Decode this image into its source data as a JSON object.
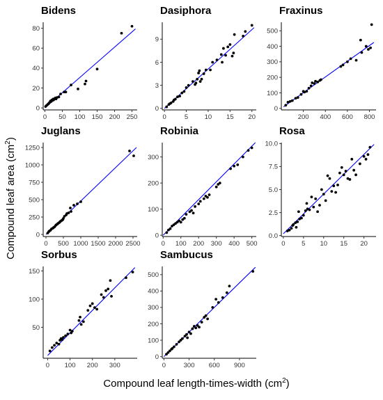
{
  "figure": {
    "xlabel": "Compound leaf length-times-width (cm²)",
    "xlabel_main": "Compound leaf length-times-width (cm",
    "xlabel_sup": "2",
    "xlabel_end": ")",
    "ylabel_main": "Compound leaf area (cm",
    "ylabel_sup": "2",
    "ylabel_end": ")",
    "point_color": "#000000",
    "line_color": "#0000ff"
  },
  "chart_data": [
    {
      "type": "scatter",
      "title": "Bidens",
      "xlim": [
        -5,
        265
      ],
      "ylim": [
        -2,
        86
      ],
      "xticks": [
        0,
        50,
        100,
        150,
        200,
        250
      ],
      "yticks": [
        0,
        20,
        40,
        60,
        80
      ],
      "fit": [
        [
          0,
          0
        ],
        [
          260,
          79.3
        ]
      ],
      "points": [
        [
          2,
          1.5
        ],
        [
          5,
          2.5
        ],
        [
          8,
          3.5
        ],
        [
          10,
          4
        ],
        [
          12,
          5
        ],
        [
          15,
          6
        ],
        [
          16,
          7
        ],
        [
          18,
          6.5
        ],
        [
          20,
          8
        ],
        [
          22,
          7.5
        ],
        [
          24,
          9
        ],
        [
          25,
          8
        ],
        [
          28,
          9
        ],
        [
          30,
          10
        ],
        [
          32,
          9
        ],
        [
          35,
          10.5
        ],
        [
          40,
          11
        ],
        [
          45,
          14
        ],
        [
          55,
          16
        ],
        [
          60,
          16
        ],
        [
          75,
          23
        ],
        [
          95,
          19
        ],
        [
          115,
          24
        ],
        [
          118,
          27
        ],
        [
          150,
          39
        ],
        [
          220,
          75
        ],
        [
          250,
          82
        ]
      ]
    },
    {
      "type": "scatter",
      "title": "Dasiphora",
      "xlim": [
        -0.5,
        21
      ],
      "ylim": [
        -0.2,
        11.2
      ],
      "xticks": [
        0,
        5,
        10,
        15,
        20
      ],
      "yticks": [
        0,
        3,
        6,
        9
      ],
      "fit": [
        [
          0,
          0
        ],
        [
          20.5,
          10.5
        ]
      ],
      "points": [
        [
          0.5,
          0.2
        ],
        [
          1,
          0.5
        ],
        [
          1.2,
          0.6
        ],
        [
          1.5,
          0.7
        ],
        [
          2,
          0.9
        ],
        [
          2.2,
          1.1
        ],
        [
          2.5,
          1.2
        ],
        [
          3,
          1.5
        ],
        [
          3.5,
          1.6
        ],
        [
          4,
          2
        ],
        [
          4.5,
          2.2
        ],
        [
          5,
          2.7
        ],
        [
          5.5,
          3
        ],
        [
          6.5,
          3.5
        ],
        [
          7,
          3.1
        ],
        [
          7.2,
          3.3
        ],
        [
          7.5,
          3.8
        ],
        [
          7.8,
          4.6
        ],
        [
          8,
          4.9
        ],
        [
          8.2,
          3.5
        ],
        [
          8.5,
          3.8
        ],
        [
          9,
          4.5
        ],
        [
          9.5,
          5
        ],
        [
          10.5,
          5
        ],
        [
          11,
          6
        ],
        [
          12,
          6.3
        ],
        [
          13,
          7
        ],
        [
          13.2,
          6
        ],
        [
          13.5,
          7.8
        ],
        [
          14,
          6.9
        ],
        [
          14.5,
          8
        ],
        [
          15,
          8.3
        ],
        [
          15.5,
          6.8
        ],
        [
          15.8,
          7.2
        ],
        [
          16,
          9.6
        ],
        [
          18,
          9.4
        ],
        [
          18.5,
          10
        ],
        [
          20,
          10.8
        ]
      ]
    },
    {
      "type": "scatter",
      "title": "Fraxinus",
      "xlim": [
        0,
        860
      ],
      "ylim": [
        -10,
        555
      ],
      "xticks": [
        200,
        400,
        600,
        800
      ],
      "yticks": [
        0,
        100,
        200,
        300,
        400,
        500
      ],
      "fit": [
        [
          20,
          10
        ],
        [
          840,
          425
        ]
      ],
      "points": [
        [
          40,
          20
        ],
        [
          60,
          40
        ],
        [
          80,
          45
        ],
        [
          100,
          50
        ],
        [
          130,
          65
        ],
        [
          150,
          70
        ],
        [
          180,
          90
        ],
        [
          200,
          110
        ],
        [
          210,
          105
        ],
        [
          230,
          110
        ],
        [
          250,
          130
        ],
        [
          270,
          145
        ],
        [
          280,
          165
        ],
        [
          300,
          160
        ],
        [
          310,
          175
        ],
        [
          330,
          170
        ],
        [
          350,
          180
        ],
        [
          360,
          185
        ],
        [
          540,
          270
        ],
        [
          560,
          280
        ],
        [
          600,
          300
        ],
        [
          630,
          320
        ],
        [
          680,
          310
        ],
        [
          720,
          440
        ],
        [
          730,
          360
        ],
        [
          770,
          400
        ],
        [
          790,
          380
        ],
        [
          810,
          390
        ],
        [
          820,
          540
        ]
      ]
    },
    {
      "type": "scatter",
      "title": "Juglans",
      "xlim": [
        -80,
        2620
      ],
      "ylim": [
        -30,
        1320
      ],
      "xticks": [
        0,
        500,
        1000,
        1500,
        2000,
        2500
      ],
      "yticks": [
        0,
        250,
        500,
        750,
        1000,
        1250
      ],
      "fit": [
        [
          0,
          0
        ],
        [
          2600,
          1250
        ]
      ],
      "points": [
        [
          50,
          20
        ],
        [
          80,
          40
        ],
        [
          100,
          50
        ],
        [
          130,
          60
        ],
        [
          160,
          80
        ],
        [
          200,
          90
        ],
        [
          220,
          100
        ],
        [
          250,
          110
        ],
        [
          280,
          130
        ],
        [
          300,
          140
        ],
        [
          330,
          150
        ],
        [
          350,
          160
        ],
        [
          380,
          170
        ],
        [
          400,
          180
        ],
        [
          420,
          190
        ],
        [
          450,
          200
        ],
        [
          480,
          210
        ],
        [
          500,
          230
        ],
        [
          530,
          260
        ],
        [
          580,
          280
        ],
        [
          600,
          300
        ],
        [
          650,
          310
        ],
        [
          700,
          380
        ],
        [
          720,
          330
        ],
        [
          800,
          420
        ],
        [
          900,
          440
        ],
        [
          1000,
          470
        ],
        [
          2400,
          1200
        ],
        [
          2520,
          1130
        ]
      ]
    },
    {
      "type": "scatter",
      "title": "Robinia",
      "xlim": [
        -5,
        525
      ],
      "ylim": [
        -5,
        355
      ],
      "xticks": [
        0,
        100,
        200,
        300,
        400,
        500
      ],
      "yticks": [
        0,
        100,
        200,
        300
      ],
      "fit": [
        [
          0,
          0
        ],
        [
          520,
          355
        ]
      ],
      "points": [
        [
          20,
          10
        ],
        [
          30,
          20
        ],
        [
          40,
          25
        ],
        [
          50,
          35
        ],
        [
          60,
          40
        ],
        [
          70,
          45
        ],
        [
          80,
          50
        ],
        [
          90,
          55
        ],
        [
          100,
          50
        ],
        [
          110,
          60
        ],
        [
          120,
          65
        ],
        [
          130,
          80
        ],
        [
          150,
          90
        ],
        [
          160,
          95
        ],
        [
          170,
          85
        ],
        [
          180,
          110
        ],
        [
          200,
          120
        ],
        [
          210,
          130
        ],
        [
          230,
          140
        ],
        [
          240,
          150
        ],
        [
          250,
          145
        ],
        [
          260,
          155
        ],
        [
          300,
          185
        ],
        [
          310,
          195
        ],
        [
          320,
          200
        ],
        [
          380,
          255
        ],
        [
          400,
          265
        ],
        [
          420,
          270
        ],
        [
          450,
          300
        ],
        [
          480,
          325
        ],
        [
          500,
          335
        ]
      ]
    },
    {
      "type": "scatter",
      "title": "Rosa",
      "xlim": [
        -0.5,
        23
      ],
      "ylim": [
        -0.1,
        10.1
      ],
      "xticks": [
        0,
        5,
        10,
        15,
        20
      ],
      "yticks": [
        0.0,
        2.5,
        5.0,
        7.5,
        10.0
      ],
      "fit": [
        [
          0,
          0.2
        ],
        [
          22.5,
          9.9
        ]
      ],
      "points": [
        [
          1,
          0.5
        ],
        [
          1.5,
          0.6
        ],
        [
          2,
          0.8
        ],
        [
          2.3,
          1.1
        ],
        [
          2.5,
          1.2
        ],
        [
          3,
          1.4
        ],
        [
          3.2,
          0.9
        ],
        [
          3.5,
          1.5
        ],
        [
          3.8,
          2.6
        ],
        [
          4,
          1.8
        ],
        [
          4.5,
          1.9
        ],
        [
          5,
          2.2
        ],
        [
          5.5,
          2.7
        ],
        [
          5.8,
          3.5
        ],
        [
          6,
          2.9
        ],
        [
          6.5,
          2.8
        ],
        [
          7,
          4.2
        ],
        [
          7.5,
          3.1
        ],
        [
          8,
          4
        ],
        [
          8.5,
          2.6
        ],
        [
          9,
          3.3
        ],
        [
          9.5,
          5
        ],
        [
          10,
          4.5
        ],
        [
          10.5,
          3.8
        ],
        [
          11,
          6.5
        ],
        [
          11.5,
          6.2
        ],
        [
          12,
          4.8
        ],
        [
          12.5,
          5.4
        ],
        [
          13,
          4.7
        ],
        [
          13.5,
          5.5
        ],
        [
          14,
          6.8
        ],
        [
          14.5,
          7.4
        ],
        [
          15,
          6.6
        ],
        [
          15.5,
          7
        ],
        [
          16,
          6.2
        ],
        [
          16.5,
          6.1
        ],
        [
          17,
          8.3
        ],
        [
          17.5,
          7.1
        ],
        [
          18,
          6.6
        ],
        [
          19,
          7.8
        ],
        [
          20,
          8.6
        ],
        [
          20.5,
          8.3
        ],
        [
          21,
          8.8
        ],
        [
          21.5,
          9.6
        ]
      ]
    },
    {
      "type": "scatter",
      "title": "Sorbus",
      "xlim": [
        -20,
        400
      ],
      "ylim": [
        -5,
        158
      ],
      "xticks": [
        0,
        100,
        200,
        300
      ],
      "yticks": [
        50,
        100,
        150
      ],
      "fit": [
        [
          0,
          0
        ],
        [
          390,
          156
        ]
      ],
      "points": [
        [
          10,
          8
        ],
        [
          20,
          14
        ],
        [
          30,
          18
        ],
        [
          40,
          22
        ],
        [
          50,
          20
        ],
        [
          55,
          27
        ],
        [
          60,
          30
        ],
        [
          65,
          28
        ],
        [
          70,
          32
        ],
        [
          80,
          35
        ],
        [
          90,
          38
        ],
        [
          100,
          45
        ],
        [
          105,
          40
        ],
        [
          110,
          43
        ],
        [
          140,
          62
        ],
        [
          145,
          68
        ],
        [
          150,
          55
        ],
        [
          160,
          60
        ],
        [
          180,
          80
        ],
        [
          190,
          88
        ],
        [
          200,
          92
        ],
        [
          210,
          85
        ],
        [
          220,
          82
        ],
        [
          240,
          108
        ],
        [
          250,
          103
        ],
        [
          260,
          115
        ],
        [
          270,
          118
        ],
        [
          280,
          133
        ],
        [
          285,
          105
        ],
        [
          350,
          138
        ],
        [
          380,
          148
        ]
      ]
    },
    {
      "type": "scatter",
      "title": "Sambucus",
      "xlim": [
        -20,
        1100
      ],
      "ylim": [
        -10,
        550
      ],
      "xticks": [
        0,
        300,
        600,
        900
      ],
      "yticks": [
        0,
        100,
        200,
        300,
        400,
        500
      ],
      "fit": [
        [
          0,
          0
        ],
        [
          1090,
          545
        ]
      ],
      "points": [
        [
          30,
          15
        ],
        [
          50,
          25
        ],
        [
          70,
          35
        ],
        [
          90,
          45
        ],
        [
          100,
          50
        ],
        [
          120,
          60
        ],
        [
          150,
          75
        ],
        [
          180,
          90
        ],
        [
          200,
          100
        ],
        [
          220,
          110
        ],
        [
          250,
          125
        ],
        [
          270,
          135
        ],
        [
          280,
          115
        ],
        [
          300,
          150
        ],
        [
          320,
          140
        ],
        [
          340,
          170
        ],
        [
          360,
          185
        ],
        [
          380,
          175
        ],
        [
          400,
          190
        ],
        [
          420,
          180
        ],
        [
          450,
          210
        ],
        [
          480,
          240
        ],
        [
          500,
          250
        ],
        [
          520,
          230
        ],
        [
          580,
          300
        ],
        [
          620,
          350
        ],
        [
          650,
          330
        ],
        [
          700,
          360
        ],
        [
          750,
          390
        ],
        [
          780,
          430
        ],
        [
          1060,
          520
        ]
      ]
    }
  ]
}
